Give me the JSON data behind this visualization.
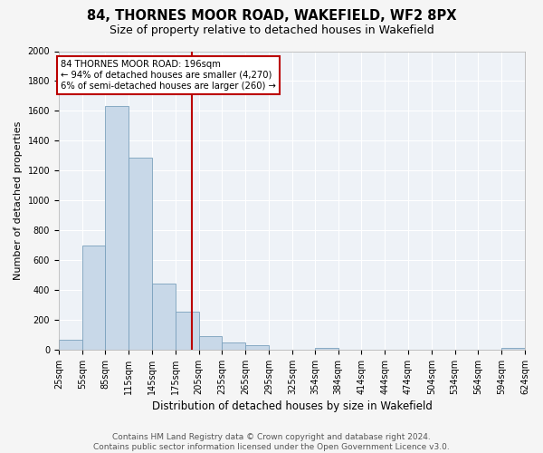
{
  "title": "84, THORNES MOOR ROAD, WAKEFIELD, WF2 8PX",
  "subtitle": "Size of property relative to detached houses in Wakefield",
  "xlabel": "Distribution of detached houses by size in Wakefield",
  "ylabel": "Number of detached properties",
  "bar_color": "#c8d8e8",
  "bar_edge_color": "#7aa0bc",
  "background_color": "#eef2f7",
  "grid_color": "#ffffff",
  "vline_x": 196,
  "vline_color": "#bb0000",
  "annotation_text": "84 THORNES MOOR ROAD: 196sqm\n← 94% of detached houses are smaller (4,270)\n6% of semi-detached houses are larger (260) →",
  "annotation_box_color": "#ffffff",
  "annotation_box_edge_color": "#bb0000",
  "bins": [
    25,
    55,
    85,
    115,
    145,
    175,
    205,
    235,
    265,
    295,
    325,
    354,
    384,
    414,
    444,
    474,
    504,
    534,
    564,
    594,
    624
  ],
  "counts": [
    65,
    695,
    1635,
    1285,
    440,
    255,
    90,
    50,
    30,
    0,
    0,
    10,
    0,
    0,
    0,
    0,
    0,
    0,
    0,
    10
  ],
  "ylim": [
    0,
    2000
  ],
  "yticks": [
    0,
    200,
    400,
    600,
    800,
    1000,
    1200,
    1400,
    1600,
    1800,
    2000
  ],
  "footer_text": "Contains HM Land Registry data © Crown copyright and database right 2024.\nContains public sector information licensed under the Open Government Licence v3.0.",
  "title_fontsize": 10.5,
  "subtitle_fontsize": 9,
  "xlabel_fontsize": 8.5,
  "ylabel_fontsize": 8,
  "tick_fontsize": 7,
  "footer_fontsize": 6.5
}
